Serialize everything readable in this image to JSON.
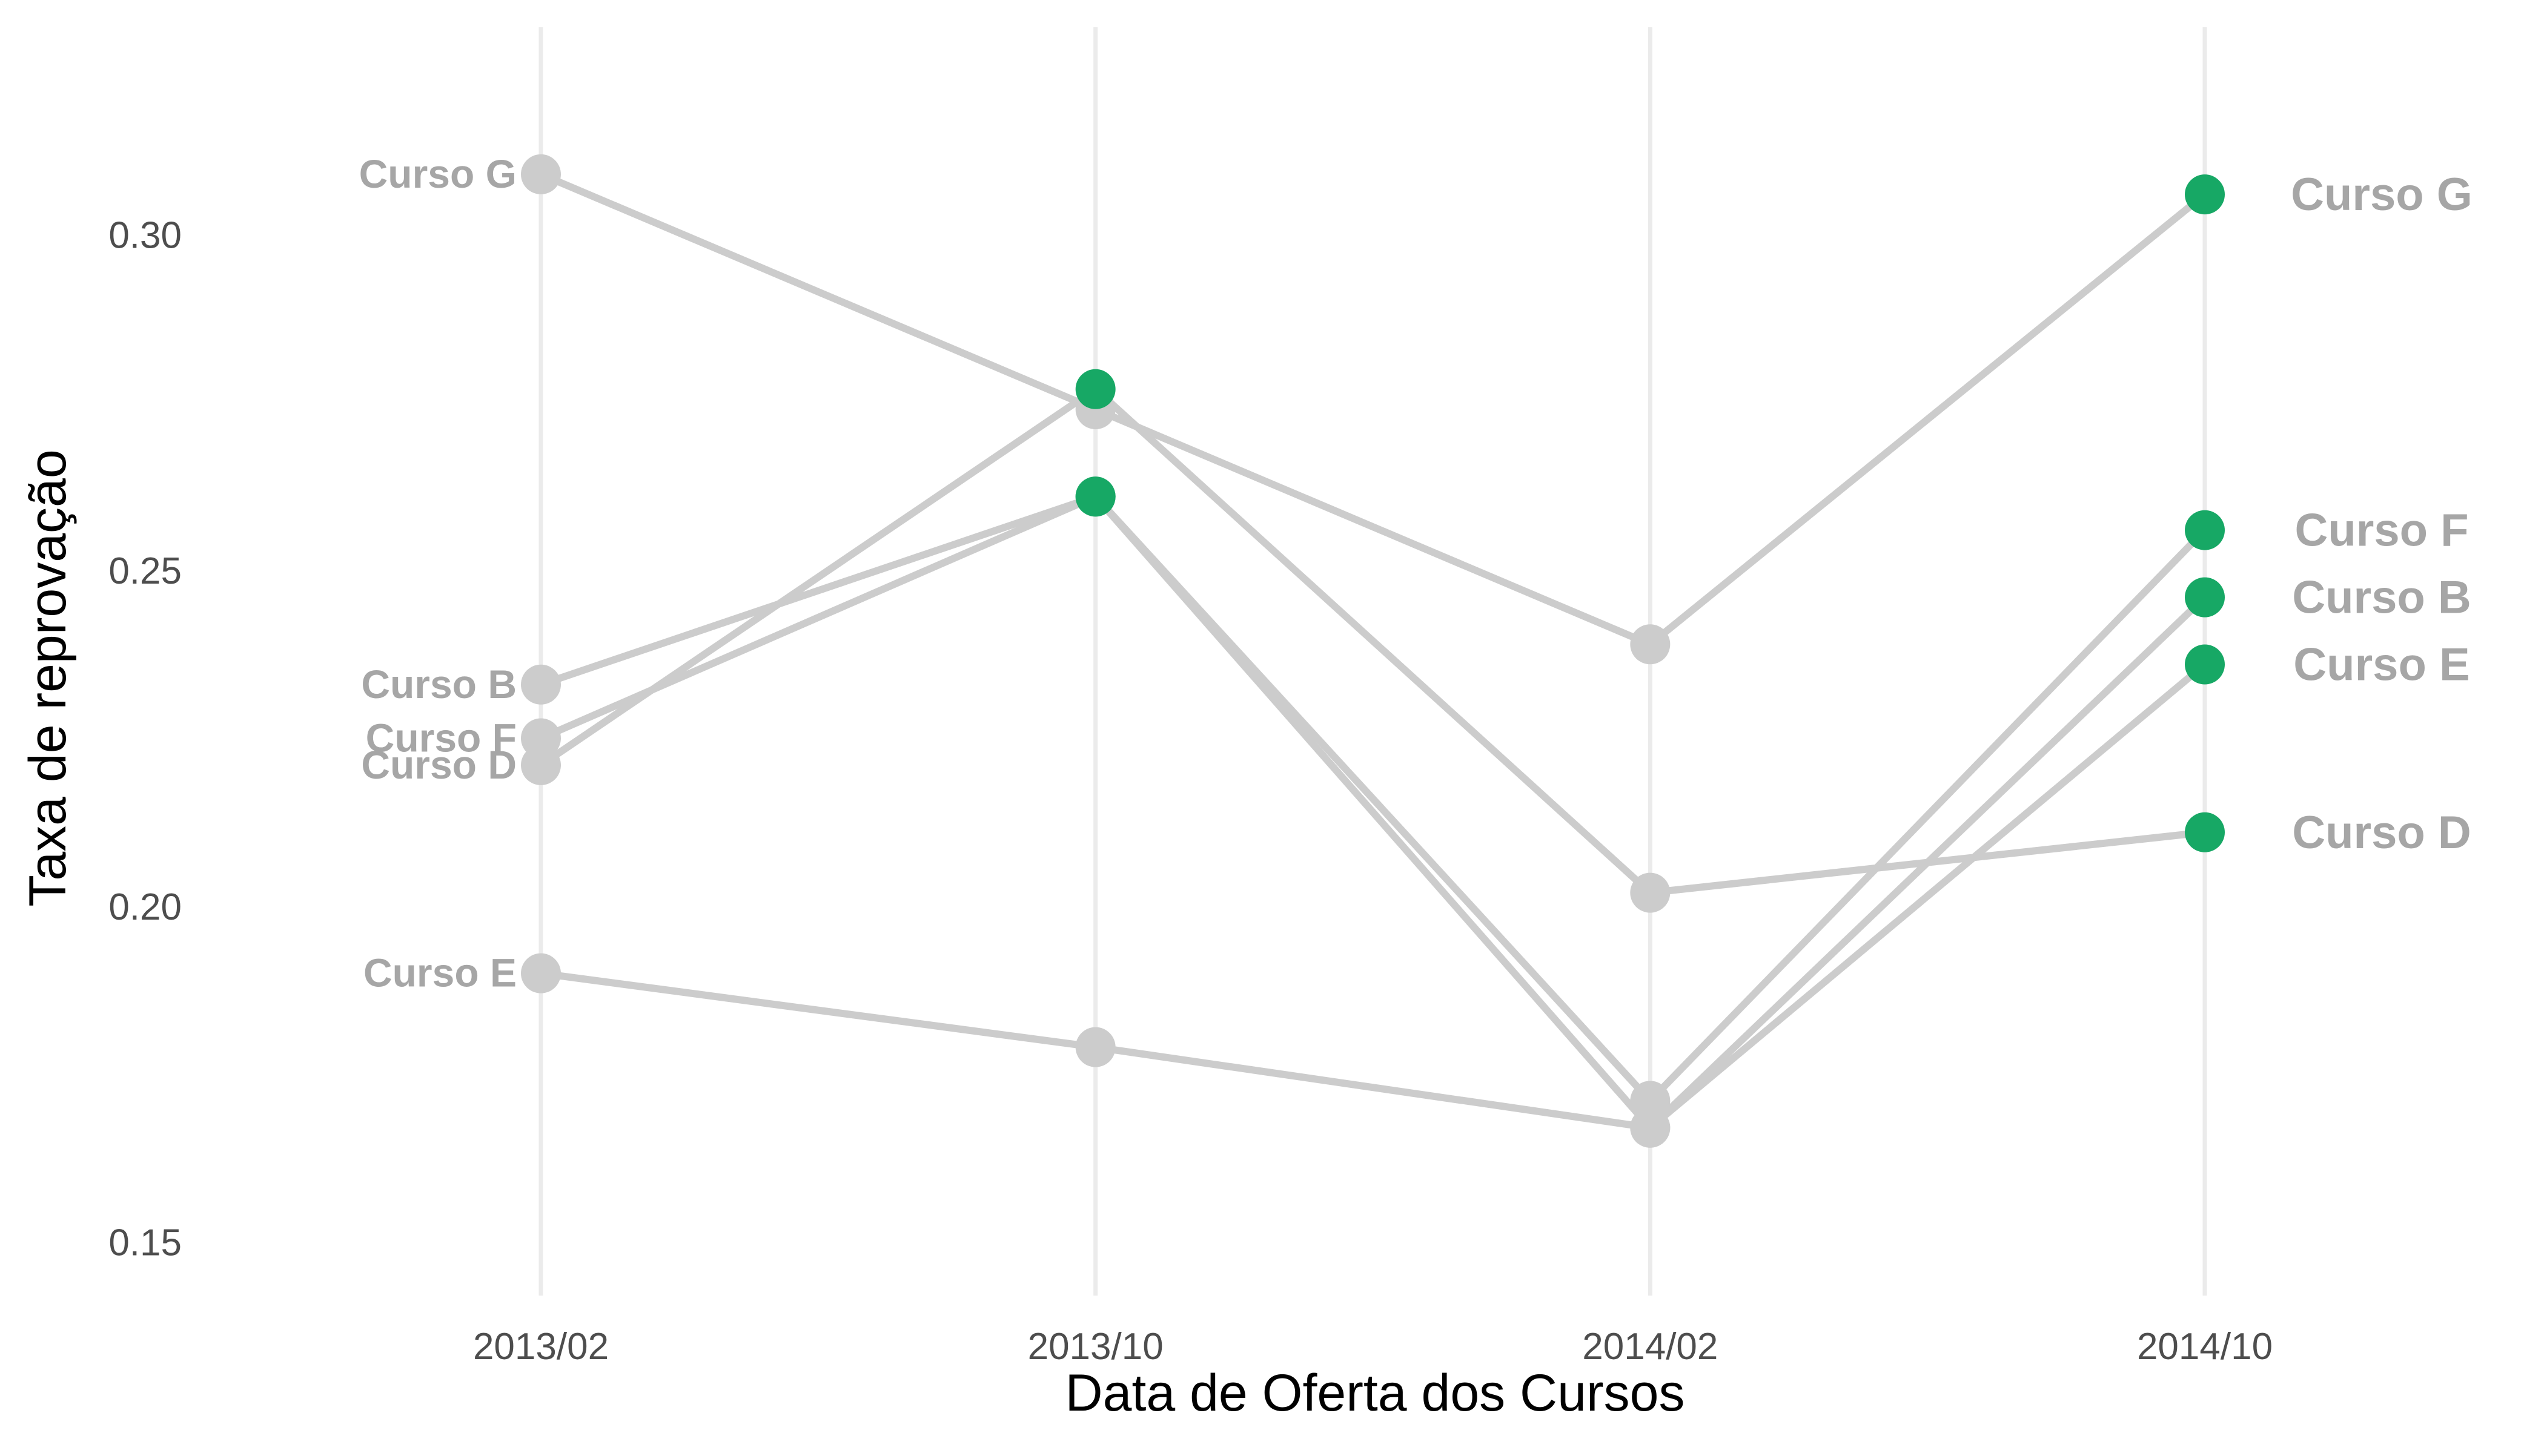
{
  "chart_data": {
    "type": "line",
    "title": "",
    "xlabel": "Data de Oferta dos Cursos",
    "ylabel": "Taxa de reprovação",
    "categories": [
      "2013/02",
      "2013/10",
      "2014/02",
      "2014/10"
    ],
    "ylim": [
      0.142,
      0.33
    ],
    "yticks": [
      0.15,
      0.2,
      0.25,
      0.3
    ],
    "ytick_labels": [
      "0.15",
      "0.20",
      "0.25",
      "0.30"
    ],
    "grid": {
      "vertical_major": true,
      "horizontal": false
    },
    "legend": "none",
    "colors": {
      "line": "#cccccc",
      "start_point": "#cccccc",
      "highlight_point": "#17a865",
      "label": "#a6a6a6"
    },
    "series": [
      {
        "name": "Curso G",
        "values": [
          0.309,
          0.274,
          0.239,
          0.306
        ],
        "highlight": [
          false,
          false,
          false,
          true
        ]
      },
      {
        "name": "Curso B",
        "values": [
          0.233,
          0.261,
          0.167,
          0.246
        ],
        "highlight": [
          false,
          true,
          false,
          true
        ]
      },
      {
        "name": "Curso F",
        "values": [
          0.225,
          0.261,
          0.171,
          0.256
        ],
        "highlight": [
          false,
          true,
          false,
          true
        ]
      },
      {
        "name": "Curso D",
        "values": [
          0.221,
          0.277,
          0.202,
          0.211
        ],
        "highlight": [
          false,
          true,
          false,
          true
        ]
      },
      {
        "name": "Curso E",
        "values": [
          0.19,
          0.179,
          0.167,
          0.236
        ],
        "highlight": [
          false,
          false,
          false,
          true
        ]
      }
    ]
  }
}
